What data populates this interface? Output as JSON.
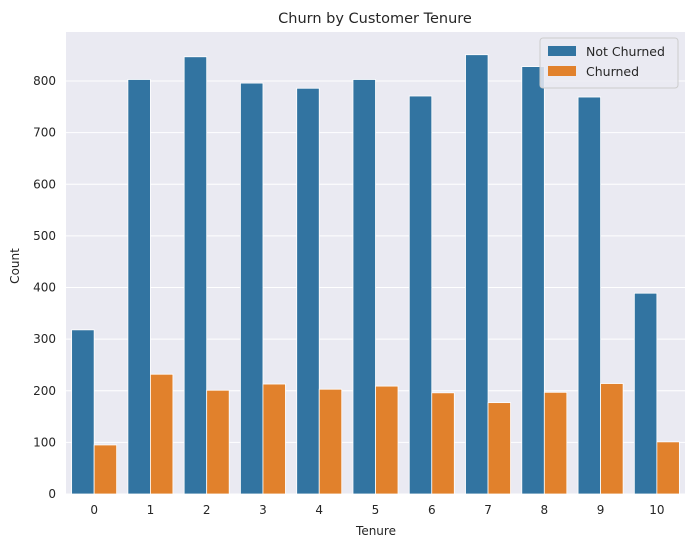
{
  "chart_data": {
    "type": "bar",
    "title": "Churn by Customer Tenure",
    "xlabel": "Tenure",
    "ylabel": "Count",
    "categories": [
      "0",
      "1",
      "2",
      "3",
      "4",
      "5",
      "6",
      "7",
      "8",
      "9",
      "10"
    ],
    "series": [
      {
        "name": "Not Churned",
        "color": "#3274a1",
        "values": [
          318,
          803,
          847,
          796,
          786,
          803,
          771,
          851,
          828,
          769,
          389
        ]
      },
      {
        "name": "Churned",
        "color": "#e1812c",
        "values": [
          95,
          232,
          201,
          213,
          203,
          209,
          196,
          177,
          197,
          214,
          101
        ]
      }
    ],
    "ylim": [
      0,
      895
    ],
    "yticks": [
      0,
      100,
      200,
      300,
      400,
      500,
      600,
      700,
      800
    ],
    "grid": true,
    "legend_position": "top-right",
    "background": "#eaeaf2"
  }
}
